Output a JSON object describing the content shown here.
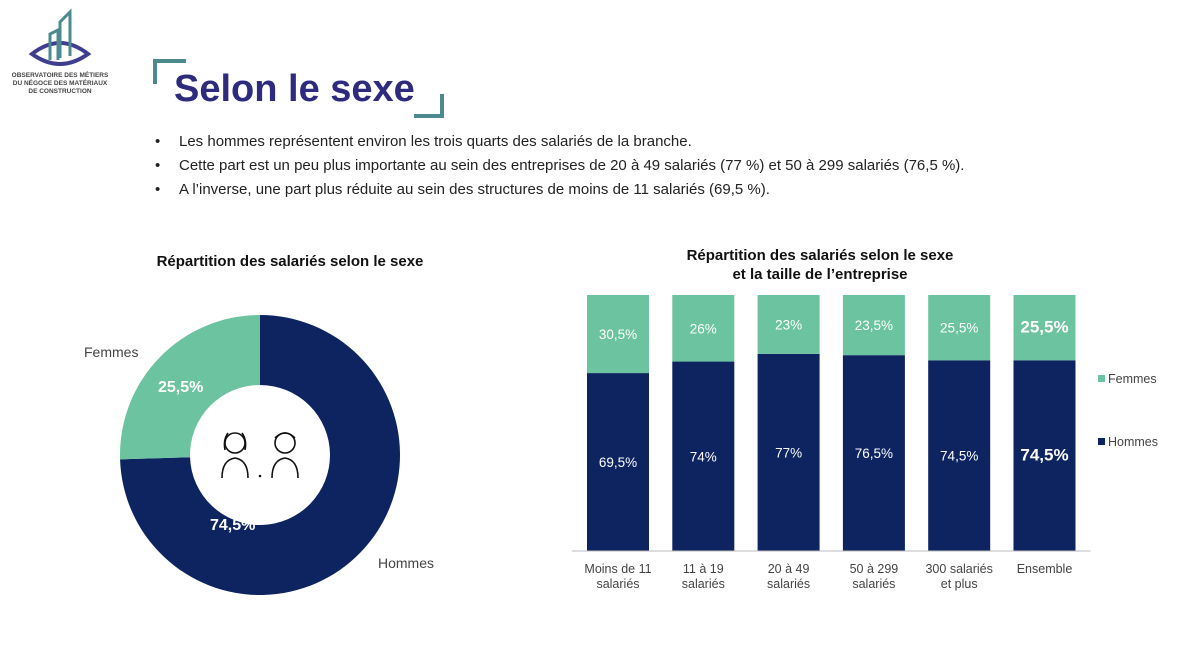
{
  "logo": {
    "text_lines": [
      "OBSERVATOIRE DES MÉTIERS",
      "DU NÉGOCE DES MATÉRIAUX",
      "DE CONSTRUCTION"
    ]
  },
  "title": "Selon le sexe",
  "bullets": [
    "Les hommes représentent environ les trois quarts des salariés de la branche.",
    "Cette part est un peu plus importante au sein des entreprises de 20 à 49 salariés (77 %) et 50 à 299 salariés (76,5 %).",
    "A l’inverse, une part plus réduite au sein des structures de moins de 11 salariés (69,5 %)."
  ],
  "colors": {
    "hommes": "#0d2460",
    "femmes": "#6cc3a0",
    "title": "#2e2a7e",
    "bracket": "#4d8a8f"
  },
  "chart_data": [
    {
      "type": "pie",
      "donut": true,
      "title": "Répartition des salariés selon le sexe",
      "slices": [
        {
          "name": "Hommes",
          "value": 74.5,
          "label": "74,5%"
        },
        {
          "name": "Femmes",
          "value": 25.5,
          "label": "25,5%"
        }
      ],
      "center_icon": "women-men-icon"
    },
    {
      "type": "bar",
      "stacked": true,
      "title_lines": [
        "Répartition des salariés selon le sexe",
        "et la taille de l’entreprise"
      ],
      "categories": [
        [
          "Moins de 11",
          "salariés"
        ],
        [
          "11 à 19",
          "salariés"
        ],
        [
          "20 à 49",
          "salariés"
        ],
        [
          "50 à 299",
          "salariés"
        ],
        [
          "300 salariés",
          "et plus"
        ],
        [
          "Ensemble"
        ]
      ],
      "series": [
        {
          "name": "Hommes",
          "values": [
            69.5,
            74,
            77,
            76.5,
            74.5,
            74.5
          ],
          "labels": [
            "69,5%",
            "74%",
            "77%",
            "76,5%",
            "74,5%",
            "74,5%"
          ]
        },
        {
          "name": "Femmes",
          "values": [
            30.5,
            26,
            23,
            23.5,
            25.5,
            25.5
          ],
          "labels": [
            "30,5%",
            "26%",
            "23%",
            "23,5%",
            "25,5%",
            "25,5%"
          ]
        }
      ],
      "ylim": [
        0,
        100
      ],
      "legend": "right",
      "grid": false
    }
  ]
}
